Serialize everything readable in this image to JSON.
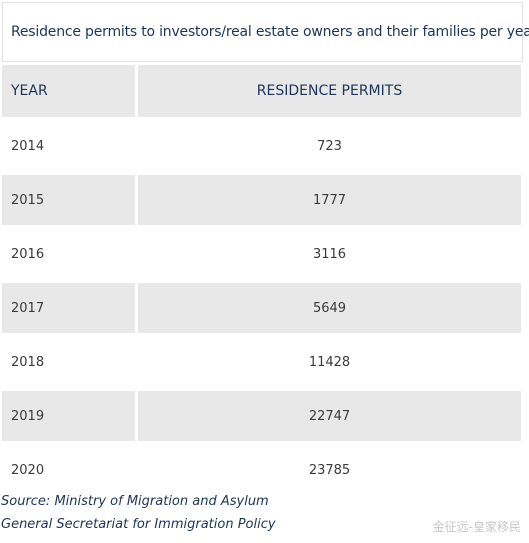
{
  "header": {
    "title": "Residence permits to investors/real estate owners and their families per year"
  },
  "table": {
    "columns": [
      "YEAR",
      "RESIDENCE PERMITS"
    ],
    "rows": [
      [
        "2014",
        "723"
      ],
      [
        "2015",
        "1777"
      ],
      [
        "2016",
        "3116"
      ],
      [
        "2017",
        "5649"
      ],
      [
        "2018",
        "11428"
      ],
      [
        "2019",
        "22747"
      ],
      [
        "2020",
        "23785"
      ]
    ]
  },
  "footer": {
    "source": [
      "Source: Ministry of Migration and Asylum",
      "General Secretariat for Immigration Policy"
    ]
  },
  "watermark": "金征远-皇家移民"
}
